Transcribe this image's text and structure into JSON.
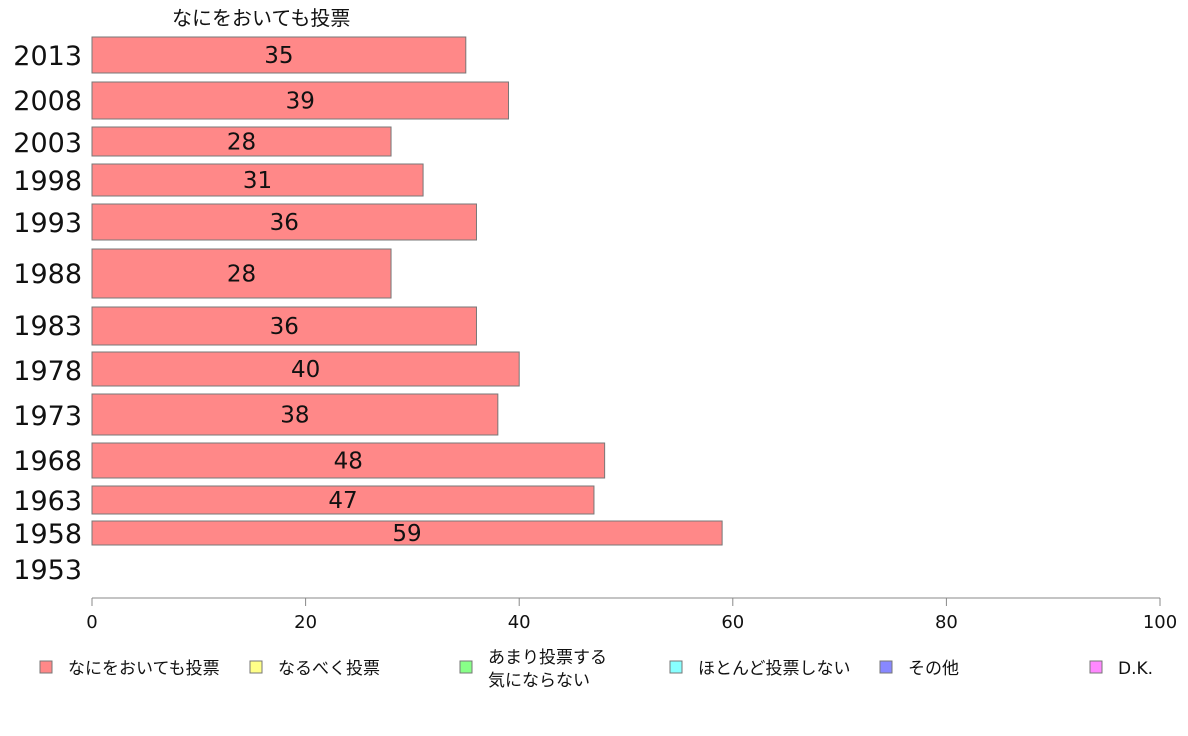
{
  "chart_data": {
    "type": "bar",
    "orientation": "horizontal",
    "title": "なにをおいても投票",
    "categories": [
      "2013",
      "2008",
      "2003",
      "1998",
      "1993",
      "1988",
      "1983",
      "1978",
      "1973",
      "1968",
      "1963",
      "1958",
      "1953"
    ],
    "series": [
      {
        "name": "なにをおいても投票",
        "color": "#ff8888",
        "values": [
          35,
          39,
          28,
          31,
          36,
          28,
          36,
          40,
          38,
          48,
          47,
          59,
          null
        ]
      }
    ],
    "value_labels": [
      "35",
      "39",
      "28",
      "31",
      "36",
      "28",
      "36",
      "40",
      "38",
      "48",
      "47",
      "59",
      ""
    ],
    "xlim": [
      0,
      100
    ],
    "xticks": [
      0,
      20,
      40,
      60,
      80,
      100
    ],
    "grid": false,
    "legend_placement": "bottom",
    "legend": [
      {
        "label": "なにをおいても投票",
        "color": "#ff8888"
      },
      {
        "label": "なるべく投票",
        "color": "#ffff88"
      },
      {
        "label": "あまり投票する",
        "label2": "気にならない",
        "color": "#88ff88"
      },
      {
        "label": "ほとんど投票しない",
        "color": "#88ffff"
      },
      {
        "label": "その他",
        "color": "#8888ff"
      },
      {
        "label": "D.K.",
        "color": "#ff88ff"
      }
    ]
  }
}
